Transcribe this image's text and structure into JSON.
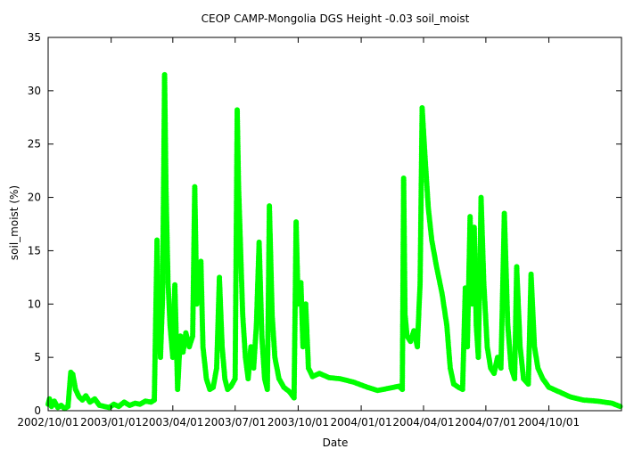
{
  "chart_data": {
    "type": "scatter",
    "title": "CEOP CAMP-Mongolia DGS Height -0.03 soil_moist",
    "xlabel": "Date",
    "ylabel": "soil_moist (%)",
    "ylim": [
      0,
      35
    ],
    "xlim": [
      "2002-10-01",
      "2005-01-15"
    ],
    "y_ticks": [
      0,
      5,
      10,
      15,
      20,
      25,
      30,
      35
    ],
    "x_ticks": [
      "2002/10/01",
      "2003/01/01",
      "2003/04/01",
      "2003/07/01",
      "2003/10/01",
      "2004/01/01",
      "2004/04/01",
      "2004/07/01",
      "2004/10/01"
    ],
    "grid": false,
    "color": "#00ff00",
    "line_color": "#c8c8c8",
    "series": [
      {
        "name": "soil_moist",
        "points": [
          [
            "2002-10-01",
            0.6
          ],
          [
            "2002-10-03",
            1.1
          ],
          [
            "2002-10-06",
            0.4
          ],
          [
            "2002-10-10",
            0.9
          ],
          [
            "2002-10-15",
            0.3
          ],
          [
            "2002-10-20",
            0.5
          ],
          [
            "2002-10-25",
            0.2
          ],
          [
            "2002-10-30",
            0.4
          ],
          [
            "2002-11-03",
            3.6
          ],
          [
            "2002-11-06",
            3.4
          ],
          [
            "2002-11-10",
            2.0
          ],
          [
            "2002-11-15",
            1.3
          ],
          [
            "2002-11-20",
            1.0
          ],
          [
            "2002-11-25",
            1.4
          ],
          [
            "2002-12-01",
            0.8
          ],
          [
            "2002-12-08",
            1.1
          ],
          [
            "2002-12-15",
            0.5
          ],
          [
            "2002-12-22",
            0.4
          ],
          [
            "2002-12-29",
            0.3
          ],
          [
            "2003-01-05",
            0.6
          ],
          [
            "2003-01-12",
            0.4
          ],
          [
            "2003-01-20",
            0.8
          ],
          [
            "2003-01-28",
            0.5
          ],
          [
            "2003-02-05",
            0.7
          ],
          [
            "2003-02-12",
            0.6
          ],
          [
            "2003-02-20",
            0.9
          ],
          [
            "2003-02-28",
            0.8
          ],
          [
            "2003-03-05",
            1.0
          ],
          [
            "2003-03-09",
            16.0
          ],
          [
            "2003-03-11",
            8.0
          ],
          [
            "2003-03-14",
            5.0
          ],
          [
            "2003-03-17",
            10.5
          ],
          [
            "2003-03-20",
            31.5
          ],
          [
            "2003-03-22",
            21.0
          ],
          [
            "2003-03-25",
            12.0
          ],
          [
            "2003-03-28",
            8.0
          ],
          [
            "2003-04-01",
            5.0
          ],
          [
            "2003-04-04",
            11.8
          ],
          [
            "2003-04-08",
            2.0
          ],
          [
            "2003-04-12",
            7.0
          ],
          [
            "2003-04-16",
            5.5
          ],
          [
            "2003-04-20",
            7.3
          ],
          [
            "2003-04-25",
            6.0
          ],
          [
            "2003-04-30",
            7.0
          ],
          [
            "2003-05-03",
            21.0
          ],
          [
            "2003-05-06",
            10.0
          ],
          [
            "2003-05-09",
            12.0
          ],
          [
            "2003-05-12",
            14.0
          ],
          [
            "2003-05-15",
            6.0
          ],
          [
            "2003-05-20",
            3.0
          ],
          [
            "2003-05-25",
            2.0
          ],
          [
            "2003-05-30",
            2.2
          ],
          [
            "2003-06-04",
            4.0
          ],
          [
            "2003-06-08",
            12.5
          ],
          [
            "2003-06-12",
            6.0
          ],
          [
            "2003-06-16",
            3.0
          ],
          [
            "2003-06-20",
            2.0
          ],
          [
            "2003-06-25",
            2.3
          ],
          [
            "2003-07-01",
            3.0
          ],
          [
            "2003-07-04",
            28.2
          ],
          [
            "2003-07-06",
            21.0
          ],
          [
            "2003-07-09",
            15.0
          ],
          [
            "2003-07-12",
            9.0
          ],
          [
            "2003-07-16",
            5.0
          ],
          [
            "2003-07-20",
            3.0
          ],
          [
            "2003-07-24",
            6.0
          ],
          [
            "2003-07-28",
            4.0
          ],
          [
            "2003-08-01",
            8.0
          ],
          [
            "2003-08-05",
            15.8
          ],
          [
            "2003-08-09",
            7.0
          ],
          [
            "2003-08-13",
            3.0
          ],
          [
            "2003-08-17",
            2.0
          ],
          [
            "2003-08-20",
            19.2
          ],
          [
            "2003-08-24",
            9.0
          ],
          [
            "2003-08-28",
            5.0
          ],
          [
            "2003-09-03",
            3.0
          ],
          [
            "2003-09-10",
            2.2
          ],
          [
            "2003-09-18",
            1.8
          ],
          [
            "2003-09-25",
            1.2
          ],
          [
            "2003-09-28",
            17.7
          ],
          [
            "2003-10-01",
            10.0
          ],
          [
            "2003-10-05",
            12.0
          ],
          [
            "2003-10-08",
            6.0
          ],
          [
            "2003-10-12",
            10.0
          ],
          [
            "2003-10-16",
            4.0
          ],
          [
            "2003-10-22",
            3.2
          ],
          [
            "2003-11-01",
            3.5
          ],
          [
            "2003-11-15",
            3.1
          ],
          [
            "2003-12-01",
            3.0
          ],
          [
            "2003-12-20",
            2.7
          ],
          [
            "2004-01-10",
            2.2
          ],
          [
            "2004-01-25",
            1.9
          ],
          [
            "2004-02-10",
            2.1
          ],
          [
            "2004-02-25",
            2.3
          ],
          [
            "2004-03-01",
            2.0
          ],
          [
            "2004-03-03",
            21.8
          ],
          [
            "2004-03-05",
            9.0
          ],
          [
            "2004-03-08",
            7.0
          ],
          [
            "2004-03-13",
            6.5
          ],
          [
            "2004-03-18",
            7.5
          ],
          [
            "2004-03-23",
            6.0
          ],
          [
            "2004-03-27",
            12.0
          ],
          [
            "2004-03-30",
            28.4
          ],
          [
            "2004-04-03",
            24.0
          ],
          [
            "2004-04-08",
            19.0
          ],
          [
            "2004-04-13",
            16.0
          ],
          [
            "2004-04-20",
            13.5
          ],
          [
            "2004-04-28",
            11.0
          ],
          [
            "2004-05-05",
            8.0
          ],
          [
            "2004-05-10",
            4.0
          ],
          [
            "2004-05-15",
            2.5
          ],
          [
            "2004-05-22",
            2.2
          ],
          [
            "2004-05-28",
            2.0
          ],
          [
            "2004-06-01",
            11.5
          ],
          [
            "2004-06-04",
            6.0
          ],
          [
            "2004-06-08",
            18.2
          ],
          [
            "2004-06-11",
            10.0
          ],
          [
            "2004-06-14",
            17.2
          ],
          [
            "2004-06-17",
            8.0
          ],
          [
            "2004-06-20",
            5.0
          ],
          [
            "2004-06-24",
            20.0
          ],
          [
            "2004-06-28",
            12.0
          ],
          [
            "2004-07-03",
            6.0
          ],
          [
            "2004-07-08",
            4.0
          ],
          [
            "2004-07-13",
            3.5
          ],
          [
            "2004-07-18",
            5.0
          ],
          [
            "2004-07-23",
            4.0
          ],
          [
            "2004-07-28",
            18.5
          ],
          [
            "2004-08-02",
            8.0
          ],
          [
            "2004-08-07",
            4.0
          ],
          [
            "2004-08-12",
            3.0
          ],
          [
            "2004-08-15",
            13.5
          ],
          [
            "2004-08-20",
            6.0
          ],
          [
            "2004-08-25",
            3.0
          ],
          [
            "2004-09-01",
            2.5
          ],
          [
            "2004-09-05",
            12.8
          ],
          [
            "2004-09-10",
            6.0
          ],
          [
            "2004-09-15",
            4.0
          ],
          [
            "2004-09-22",
            3.0
          ],
          [
            "2004-10-01",
            2.2
          ],
          [
            "2004-10-15",
            1.8
          ],
          [
            "2004-11-01",
            1.3
          ],
          [
            "2004-11-20",
            1.0
          ],
          [
            "2004-12-10",
            0.9
          ],
          [
            "2005-01-01",
            0.7
          ],
          [
            "2005-01-13",
            0.4
          ]
        ]
      }
    ]
  }
}
